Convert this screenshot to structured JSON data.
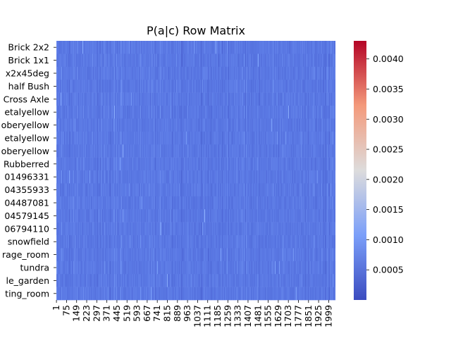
{
  "chart_data": {
    "type": "heatmap",
    "title": "P(a|c) Row Matrix",
    "xlabel": "",
    "ylabel": "",
    "colormap": "coolwarm",
    "color_range": [
      0.0,
      0.0043
    ],
    "colorbar_ticks": [
      "0.0005",
      "0.0010",
      "0.0015",
      "0.0020",
      "0.0025",
      "0.0030",
      "0.0035",
      "0.0040"
    ],
    "colorbar_tick_values": [
      0.0005,
      0.001,
      0.0015,
      0.002,
      0.0025,
      0.003,
      0.0035,
      0.004
    ],
    "row_labels": [
      "Brick 2x2",
      "Brick 1x1",
      "x2x45deg",
      "half Bush",
      "Cross Axle",
      "etalyellow",
      "oberyellow",
      "etalyellow",
      "oberyellow",
      "Rubberred",
      "01496331",
      "04355933",
      "04487081",
      "04579145",
      "06794110",
      "snowfield",
      "rage_room",
      "tundra",
      "le_garden",
      "ting_room"
    ],
    "column_tick_labels": [
      "1",
      "75",
      "149",
      "223",
      "297",
      "371",
      "445",
      "519",
      "593",
      "667",
      "741",
      "815",
      "889",
      "963",
      "1037",
      "1111",
      "1185",
      "1259",
      "1333",
      "1407",
      "1481",
      "1555",
      "1629",
      "1703",
      "1777",
      "1851",
      "1925",
      "1999"
    ],
    "column_count": 2048,
    "typical_value_range": [
      0.0003,
      0.0009
    ]
  }
}
